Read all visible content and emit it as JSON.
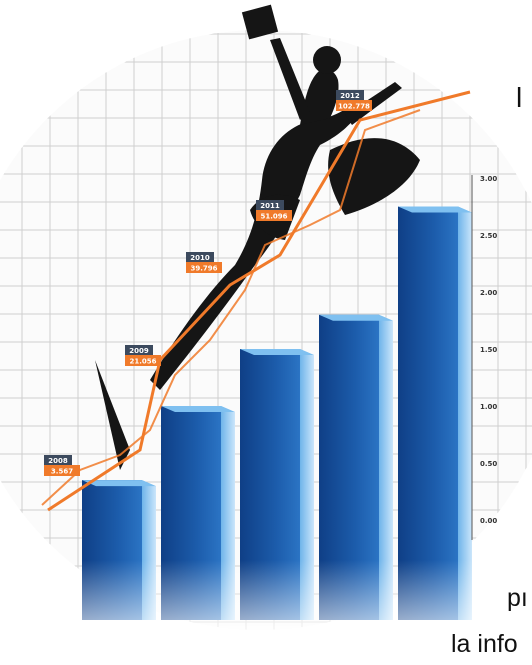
{
  "chart_data": {
    "type": "bar",
    "categories": [
      "2008",
      "2009",
      "2010",
      "2011",
      "2012"
    ],
    "values": [
      0.35,
      1.0,
      1.5,
      1.8,
      2.75
    ],
    "y_ticks": [
      "3.00",
      "2.50",
      "2.00",
      "1.50",
      "1.00",
      "0.50",
      "0.00"
    ],
    "ylim": [
      0,
      3
    ],
    "grid": true,
    "trend_line": {
      "color": "#f07a2a",
      "points": [
        {
          "year": "2008",
          "label": "3.567"
        },
        {
          "year": "2009",
          "label": "21.056"
        },
        {
          "year": "2010",
          "label": "39.796"
        },
        {
          "year": "2011",
          "label": "51.096"
        },
        {
          "year": "2012",
          "label": "102.778"
        }
      ]
    },
    "bar_color": "#1f5fa8",
    "label_year_color": "#3c4a5e",
    "label_value_color": "#f07a2a"
  },
  "text_fragments": {
    "top_right": "l",
    "bottom_line1": "pı",
    "bottom_line2": "la info"
  }
}
